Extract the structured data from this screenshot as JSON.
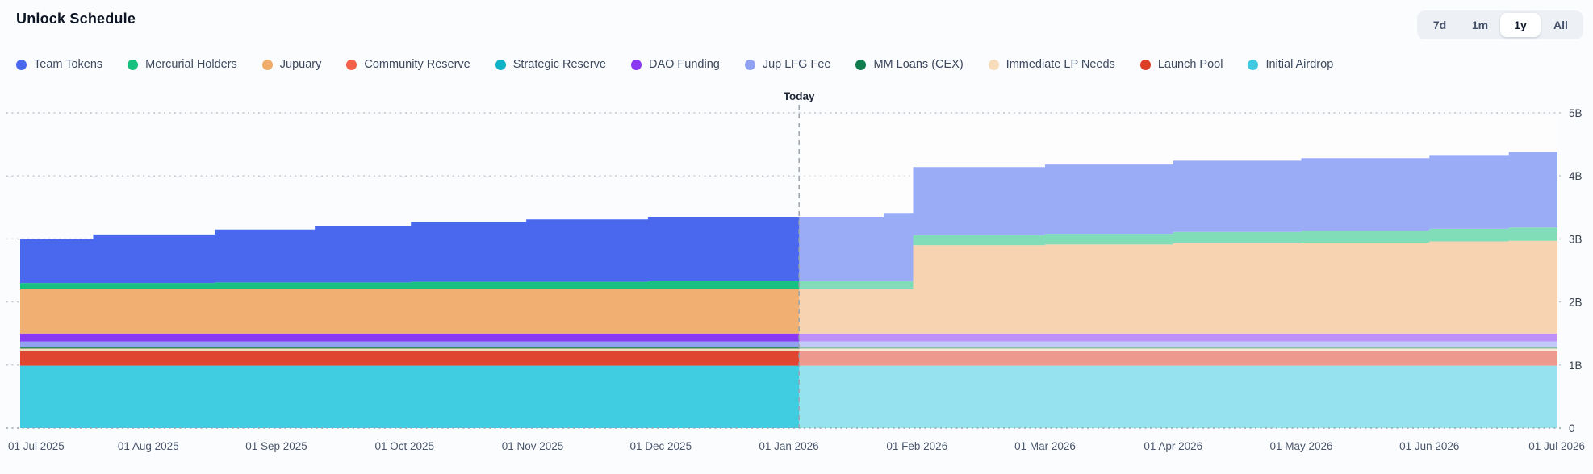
{
  "header": {
    "title": "Unlock Schedule"
  },
  "range_selector": {
    "options": [
      "7d",
      "1m",
      "1y",
      "All"
    ],
    "selected": "1y"
  },
  "chart_data": {
    "type": "area",
    "title": "Unlock Schedule",
    "stacked": true,
    "faded_after_today": true,
    "today_marker": {
      "label": "Today",
      "month_position": 6.08
    },
    "x_axis": {
      "labels": [
        "01 Jul 2025",
        "01 Aug 2025",
        "01 Sep 2025",
        "01 Oct 2025",
        "01 Nov 2025",
        "01 Dec 2025",
        "01 Jan 2026",
        "01 Feb 2026",
        "01 Mar 2026",
        "01 Apr 2026",
        "01 May 2026",
        "01 Jun 2026",
        "01 Jul 2026"
      ],
      "range_months": [
        0,
        12
      ]
    },
    "y_axis": {
      "labels": [
        "0",
        "1B",
        "2B",
        "3B",
        "4B",
        "5B"
      ],
      "min_billions": 0,
      "max_billions": 5,
      "position": "right",
      "gridlines": "dotted"
    },
    "unit": "tokens (billions)",
    "segment_breakpoints_months": [
      0,
      0.57,
      1.52,
      2.3,
      3.05,
      3.95,
      4.9,
      5.9,
      6.74,
      6.97,
      8.0,
      9.0,
      10.0,
      11.0,
      11.62,
      12.0
    ],
    "series_bottom_to_top": [
      {
        "name": "Initial Airdrop",
        "color": "#40cde2",
        "values_billions": [
          0.99,
          0.99,
          0.99,
          0.99,
          0.99,
          0.99,
          0.99,
          0.99,
          0.99,
          0.99,
          0.99,
          0.99,
          0.99,
          0.99,
          0.99
        ]
      },
      {
        "name": "Launch Pool",
        "color": "#df4530",
        "values_billions": [
          0.23,
          0.23,
          0.23,
          0.23,
          0.23,
          0.23,
          0.23,
          0.23,
          0.23,
          0.23,
          0.23,
          0.23,
          0.23,
          0.23,
          0.23
        ]
      },
      {
        "name": "Immediate LP Needs",
        "color": "#f6dcba",
        "values_billions": [
          0.04,
          0.04,
          0.04,
          0.04,
          0.04,
          0.04,
          0.04,
          0.04,
          0.04,
          0.04,
          0.04,
          0.04,
          0.04,
          0.04,
          0.04
        ]
      },
      {
        "name": "MM Loans (CEX)",
        "color": "#2e8b62",
        "values_billions": [
          0.025,
          0.025,
          0.025,
          0.025,
          0.025,
          0.025,
          0.025,
          0.025,
          0.025,
          0.025,
          0.025,
          0.025,
          0.025,
          0.025,
          0.025
        ]
      },
      {
        "name": "Jup LFG Fee",
        "color": "#90a1f2",
        "values_billions": [
          0.09,
          0.09,
          0.09,
          0.09,
          0.09,
          0.09,
          0.09,
          0.09,
          0.09,
          0.09,
          0.09,
          0.09,
          0.09,
          0.09,
          0.09
        ]
      },
      {
        "name": "DAO Funding",
        "color": "#8a38f2",
        "values_billions": [
          0.125,
          0.125,
          0.125,
          0.125,
          0.125,
          0.125,
          0.125,
          0.125,
          0.125,
          0.125,
          0.125,
          0.125,
          0.125,
          0.125,
          0.125
        ]
      },
      {
        "name": "Strategic Reserve",
        "color": "#10b2c6",
        "values_billions": [
          0,
          0,
          0,
          0,
          0,
          0,
          0,
          0,
          0,
          0,
          0,
          0,
          0,
          0,
          0
        ]
      },
      {
        "name": "Community Reserve",
        "color": "#f4614b",
        "values_billions": [
          0,
          0,
          0,
          0,
          0,
          0,
          0,
          0,
          0,
          0,
          0,
          0,
          0,
          0,
          0
        ]
      },
      {
        "name": "Jupuary",
        "color": "#f1b072",
        "values_billions": [
          0.7,
          0.7,
          0.7,
          0.7,
          0.7,
          0.7,
          0.7,
          0.7,
          0.7,
          1.4,
          1.41,
          1.43,
          1.44,
          1.46,
          1.47
        ]
      },
      {
        "name": "Mercurial Holders",
        "color": "#18c17f",
        "values_billions": [
          0.1,
          0.1,
          0.11,
          0.11,
          0.12,
          0.12,
          0.13,
          0.13,
          0.13,
          0.16,
          0.17,
          0.18,
          0.19,
          0.2,
          0.21
        ]
      },
      {
        "name": "Team Tokens",
        "color": "#4a68ee",
        "values_billions": [
          0.7,
          0.77,
          0.84,
          0.9,
          0.95,
          0.99,
          1.02,
          1.02,
          1.08,
          1.08,
          1.1,
          1.13,
          1.15,
          1.17,
          1.2
        ]
      }
    ],
    "legend_display_order": [
      {
        "label": "Team Tokens",
        "color": "#4a68ee"
      },
      {
        "label": "Mercurial Holders",
        "color": "#18c17f"
      },
      {
        "label": "Jupuary",
        "color": "#f0ac6a"
      },
      {
        "label": "Community Reserve",
        "color": "#f4614b"
      },
      {
        "label": "Strategic Reserve",
        "color": "#10b2c6"
      },
      {
        "label": "DAO Funding",
        "color": "#8a38f2"
      },
      {
        "label": "Jup LFG Fee",
        "color": "#90a1f2"
      },
      {
        "label": "MM Loans (CEX)",
        "color": "#0f7c4e"
      },
      {
        "label": "Immediate LP Needs",
        "color": "#f6dcba"
      },
      {
        "label": "Launch Pool",
        "color": "#dd3f26"
      },
      {
        "label": "Initial Airdrop",
        "color": "#3fc9e0"
      }
    ],
    "style_colors": {
      "gridline": "#bfc5cf",
      "zero_line": "#9aa2ad",
      "today_line": "#9aa3ae",
      "today_label": "#1f2937",
      "y_label": "#3a4250",
      "x_label": "#49566b",
      "fade_overlay": "rgba(255,255,255,0.45)"
    }
  }
}
